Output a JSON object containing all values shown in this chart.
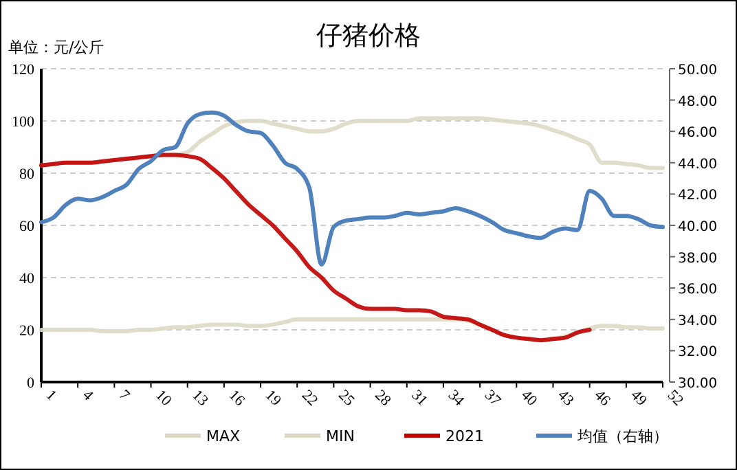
{
  "chart_data": {
    "type": "line",
    "title": "仔猪价格",
    "ylabel": "单位：元/公斤",
    "x": [
      1,
      2,
      3,
      4,
      5,
      6,
      7,
      8,
      9,
      10,
      11,
      12,
      13,
      14,
      15,
      16,
      17,
      18,
      19,
      20,
      21,
      22,
      23,
      24,
      25,
      26,
      27,
      28,
      29,
      30,
      31,
      32,
      33,
      34,
      35,
      36,
      37,
      38,
      39,
      40,
      41,
      42,
      43,
      44,
      45,
      46,
      47,
      48,
      49,
      50,
      51,
      52
    ],
    "series": [
      {
        "name": "MAX",
        "color": "#ddd9c4",
        "values": [
          83,
          83.5,
          84,
          84,
          84,
          84.5,
          85,
          85.5,
          86,
          86.5,
          87,
          87,
          88,
          92,
          95,
          98,
          99.5,
          100,
          100,
          99,
          98,
          97,
          96,
          96,
          97,
          99,
          100,
          100,
          100,
          100,
          100,
          101,
          101,
          101,
          101,
          101,
          101,
          100.5,
          100,
          99.5,
          99,
          98,
          96.5,
          95,
          93,
          91,
          84,
          84,
          83.5,
          83,
          82,
          82
        ]
      },
      {
        "name": "MIN",
        "color": "#ddd9c4",
        "values": [
          20,
          20,
          20,
          20,
          20,
          19.5,
          19.5,
          19.5,
          20,
          20,
          20.5,
          21,
          21,
          21.5,
          22,
          22,
          22,
          21.5,
          21.5,
          22,
          23,
          24,
          24,
          24,
          24,
          24,
          24,
          24,
          24,
          24,
          24,
          24,
          24,
          24,
          24,
          23.5,
          22,
          20,
          18,
          17,
          16.5,
          16,
          16.5,
          17.5,
          19,
          20.5,
          21.5,
          21.5,
          21,
          21,
          20.5,
          20.5
        ]
      },
      {
        "name": "2021",
        "color": "#c00000",
        "values": [
          83,
          83.5,
          84,
          84,
          84,
          84.5,
          85,
          85.5,
          86,
          86.5,
          87,
          87,
          86.5,
          85.5,
          82,
          78,
          73,
          68,
          64,
          60,
          55,
          50,
          44,
          40,
          35,
          32,
          29,
          28,
          28,
          28,
          27.5,
          27.5,
          27,
          25,
          24.5,
          24,
          22,
          20,
          18,
          17,
          16.5,
          16,
          16.5,
          17,
          19,
          20,
          null,
          null,
          null,
          null,
          null,
          null
        ]
      },
      {
        "name": "均值（右轴）",
        "color": "#4f81bd",
        "axis": "y2",
        "values": [
          40.2,
          40.5,
          41.3,
          41.7,
          41.6,
          41.8,
          42.2,
          42.6,
          43.6,
          44.1,
          44.8,
          45,
          46.5,
          47.1,
          47.2,
          47,
          46.4,
          46,
          45.9,
          45.1,
          44,
          43.6,
          42.4,
          37.5,
          39.9,
          40.3,
          40.4,
          40.5,
          40.5,
          40.6,
          40.8,
          40.7,
          40.8,
          40.9,
          41.1,
          40.9,
          40.6,
          40.2,
          39.7,
          39.5,
          39.3,
          39.2,
          39.6,
          39.8,
          39.7,
          42.2,
          41.7,
          40.6,
          40.6,
          40.4,
          40,
          39.9
        ]
      }
    ],
    "xlim": [
      1,
      52
    ],
    "xticks": [
      1,
      4,
      7,
      10,
      13,
      16,
      19,
      22,
      25,
      28,
      31,
      34,
      37,
      40,
      43,
      46,
      49,
      52
    ],
    "ylim": [
      0,
      120
    ],
    "yticks": [
      0,
      20,
      40,
      60,
      80,
      100,
      120
    ],
    "y2lim": [
      30,
      50
    ],
    "y2ticks": [
      {
        "value": 30,
        "label": "30.00"
      },
      {
        "value": 32,
        "label": "32.00"
      },
      {
        "value": 34,
        "label": "34.00"
      },
      {
        "value": 36,
        "label": "36.00"
      },
      {
        "value": 38,
        "label": "38.00"
      },
      {
        "value": 40,
        "label": "40.00"
      },
      {
        "value": 42,
        "label": "42.00"
      },
      {
        "value": 44,
        "label": "44.00"
      },
      {
        "value": 46,
        "label": "46.00"
      },
      {
        "value": 48,
        "label": "48.00"
      },
      {
        "value": 50,
        "label": "50.00"
      }
    ],
    "grid": "y",
    "legend": "bottom",
    "marker": "none",
    "line_style": "solid"
  }
}
